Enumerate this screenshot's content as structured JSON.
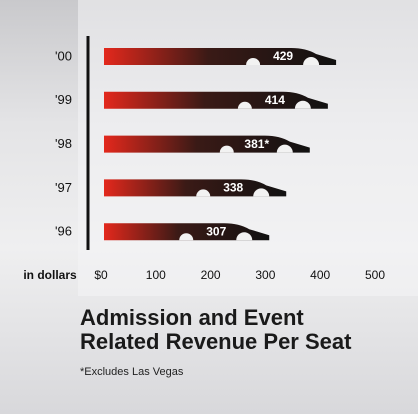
{
  "chart_data": {
    "type": "bar",
    "orientation": "horizontal",
    "title": "Admission and Event Related Revenue Per Seat",
    "footnote": "*Excludes Las Vegas",
    "xlabel": "in dollars",
    "categories": [
      "'00",
      "'99",
      "'98",
      "'97",
      "'96"
    ],
    "values": [
      429,
      414,
      381,
      338,
      307
    ],
    "value_labels": [
      "429",
      "414",
      "381*",
      "338",
      "307"
    ],
    "color": "#e3281c",
    "xlim": [
      0,
      500
    ],
    "xticks": [
      {
        "value": 0,
        "label": "$0"
      },
      100,
      200,
      300,
      400,
      500
    ]
  }
}
